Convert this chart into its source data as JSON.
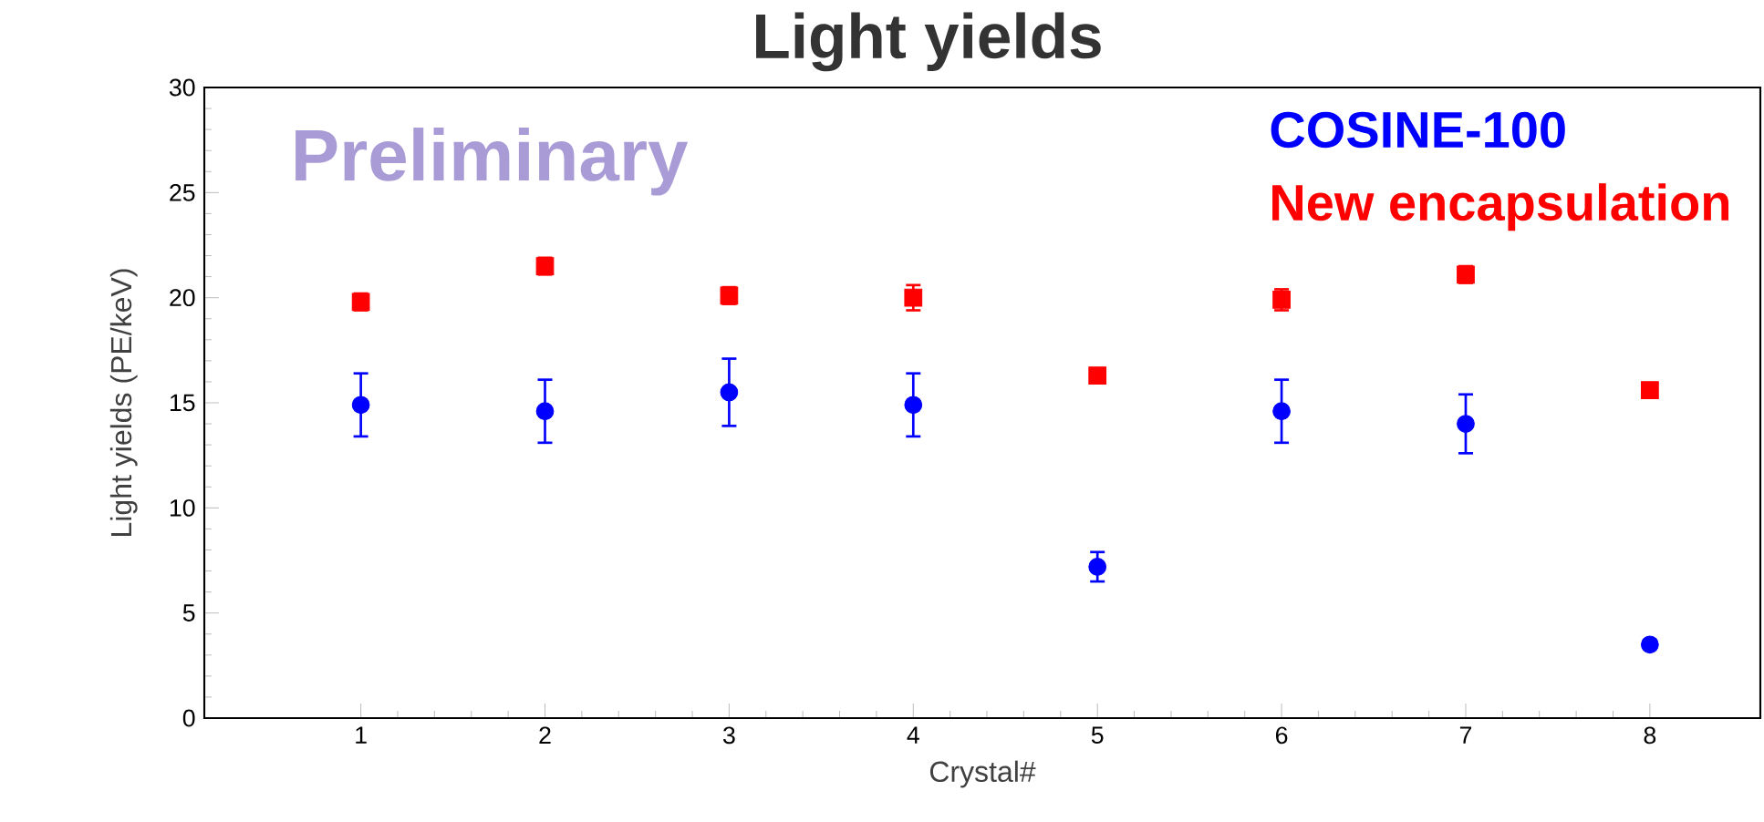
{
  "chart_data": {
    "type": "scatter",
    "title": "Light yields",
    "xlabel": "Crystal#",
    "ylabel": "Light yields (PE/keV)",
    "x": [
      1,
      2,
      3,
      4,
      5,
      6,
      7,
      8
    ],
    "series": [
      {
        "name": "COSINE-100",
        "color": "#0000ff",
        "marker": "circle",
        "values": [
          14.9,
          14.6,
          15.5,
          14.9,
          7.2,
          14.6,
          14.0,
          3.5
        ],
        "errors": [
          1.5,
          1.5,
          1.6,
          1.5,
          0.7,
          1.5,
          1.4,
          0.2
        ]
      },
      {
        "name": "New encapsulation",
        "color": "#ff0000",
        "marker": "square",
        "values": [
          19.8,
          21.5,
          20.1,
          20.0,
          16.3,
          19.9,
          21.1,
          15.6
        ],
        "errors": [
          0.4,
          0.4,
          0.4,
          0.6,
          0.3,
          0.5,
          0.4,
          0.3
        ]
      }
    ],
    "xlim": [
      0.15,
      8.6
    ],
    "ylim": [
      0,
      30
    ],
    "xticks": [
      1,
      2,
      3,
      4,
      5,
      6,
      7,
      8
    ],
    "yticks": [
      0,
      5,
      10,
      15,
      20,
      25,
      30
    ],
    "grid": false,
    "legend": "top right",
    "annotations": [
      "Preliminary"
    ]
  }
}
